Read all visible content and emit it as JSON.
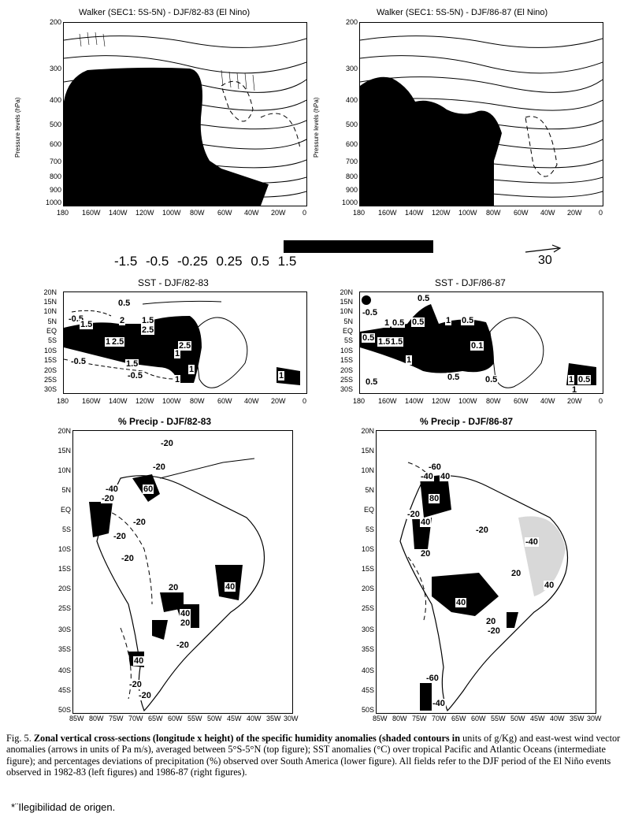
{
  "top_panels": {
    "left_title": "Walker (SEC1: 5S-5N) - DJF/82-83 (El Nino)",
    "right_title": "Walker (SEC1: 5S-5N) - DJF/86-87 (El Nino)",
    "y_axis_label": "Pressure levels (hPa)",
    "pressure_ticks": [
      "200",
      "300",
      "400",
      "500",
      "600",
      "700",
      "800",
      "900",
      "1000"
    ],
    "lon_ticks": [
      "180",
      "160W",
      "140W",
      "120W",
      "100W",
      "80W",
      "60W",
      "40W",
      "20W",
      "0"
    ]
  },
  "legend": {
    "values": "-1.5  -0.5  -0.25  0.25   0.5   1.5",
    "arrow_label": "30"
  },
  "sst_panels": {
    "left_title": "SST - DJF/82-83",
    "right_title": "SST - DJF/86-87",
    "lat_ticks": [
      "20N",
      "15N",
      "10N",
      "5N",
      "EQ",
      "5S",
      "10S",
      "15S",
      "20S",
      "25S",
      "30S"
    ],
    "lon_ticks": [
      "180",
      "160W",
      "140W",
      "120W",
      "100W",
      "80W",
      "60W",
      "40W",
      "20W",
      "0"
    ],
    "left_labels": [
      "0.5",
      "-0.5",
      "1.5",
      "2",
      "1.5",
      "2.5",
      "1",
      "2.5",
      "2.5",
      "1",
      "1.5",
      "-0.5",
      "-0.5",
      "1",
      "1",
      "1"
    ],
    "right_labels": [
      "0.5",
      "-0.5",
      "1",
      "0.5",
      "0.5",
      "1",
      "0.5",
      "0.5",
      "1.5",
      "1.5",
      "0.1",
      "1",
      "1",
      "0.5",
      "0.5",
      "1",
      "0.5",
      "0.5"
    ]
  },
  "precip_panels": {
    "left_title": "% Precip - DJF/82-83",
    "right_title": "% Precip - DJF/86-87",
    "lat_ticks": [
      "20N",
      "15N",
      "10N",
      "5N",
      "EQ",
      "5S",
      "10S",
      "15S",
      "20S",
      "25S",
      "30S",
      "35S",
      "40S",
      "45S",
      "50S"
    ],
    "lon_ticks": [
      "85W",
      "80W",
      "75W",
      "70W",
      "65W",
      "60W",
      "55W",
      "50W",
      "45W",
      "40W",
      "35W",
      "30W"
    ],
    "left_labels": [
      "-20",
      "60",
      "-40",
      "-20",
      "-20",
      "-20",
      "-20",
      "40",
      "20",
      "40",
      "20",
      "-20",
      "40",
      "-20",
      "-20",
      "-20"
    ],
    "right_labels": [
      "-60",
      "-40",
      "40",
      "80",
      "-20",
      "40",
      "-20",
      "20",
      "-40",
      "20",
      "40",
      "40",
      "20",
      "-20",
      "-60",
      "-40"
    ]
  },
  "caption": {
    "prefix": "Fig. 5.",
    "bold_text": "Zonal vertical cross-sections (longitude x height) of the specific humidity anomalies (shaded contours in",
    "rest": "units of g/Kg) and east-west wind vector anomalies (arrows in units of Pa m/s), averaged between 5°S-5°N (top figure); SST anomalies (°C) over tropical Pacific and Atlantic Oceans (intermediate figure); and percentages deviations of precipitation (%) observed over South America (lower figure). All fields refer to the DJF period of the El Niño events observed in 1982-83 (left figures) and 1986-87 (right figures)."
  },
  "footnote": "*¨Ilegibilidad de origen."
}
